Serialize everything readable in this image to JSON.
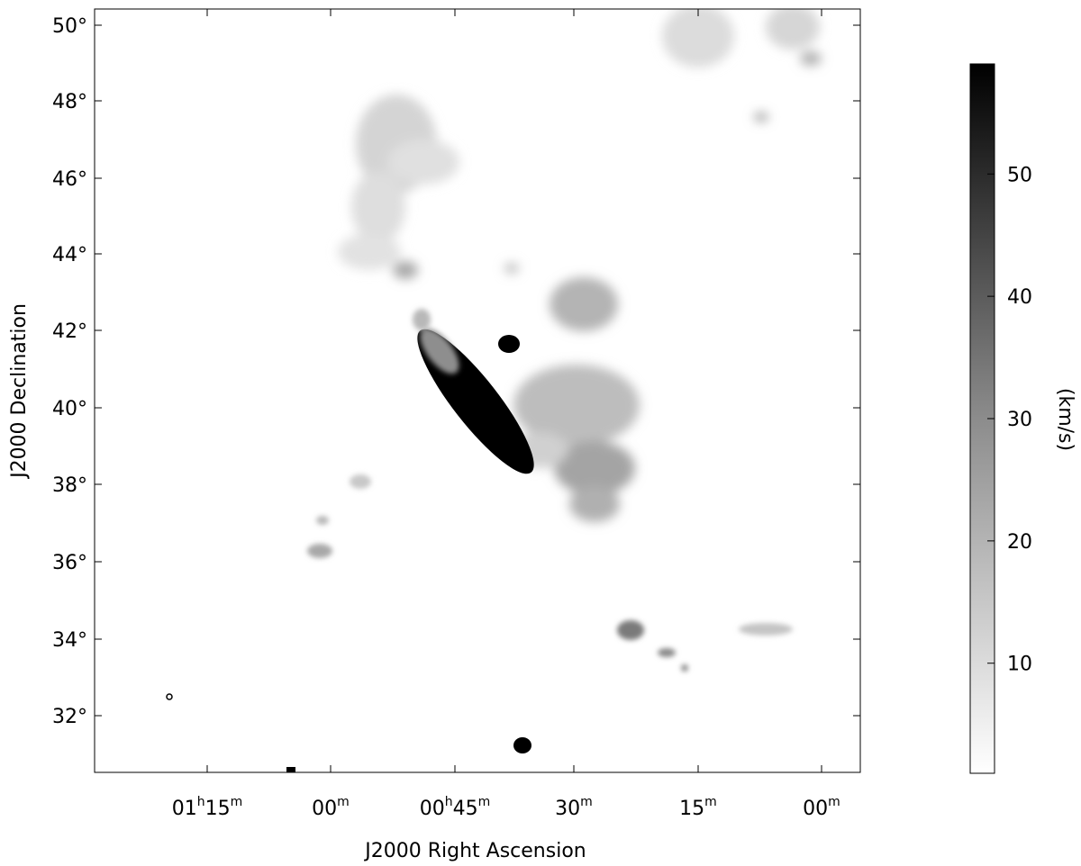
{
  "figure": {
    "x_axis": {
      "label": "J2000 Right Ascension",
      "ticks": [
        {
          "hh": "01",
          "mm": "15"
        },
        {
          "hh": "",
          "mm": "00"
        },
        {
          "hh": "00",
          "mm": "45"
        },
        {
          "hh": "",
          "mm": "30"
        },
        {
          "hh": "",
          "mm": "15"
        },
        {
          "hh": "",
          "mm": "00"
        }
      ]
    },
    "y_axis": {
      "label": "J2000 Declination",
      "ticks": [
        "50°",
        "48°",
        "46°",
        "44°",
        "42°",
        "40°",
        "38°",
        "36°",
        "34°",
        "32°"
      ]
    },
    "colorbar": {
      "label": "(km/s)",
      "ticks": [
        "50",
        "40",
        "30",
        "20",
        "10"
      ],
      "min": 1,
      "max": 59,
      "low_color": "#ffffff",
      "high_color": "#000000"
    },
    "map_colors": {
      "faint": "#e6e6e6",
      "light": "#c8c8c8",
      "medium": "#9a9a9a",
      "dark": "#000000"
    }
  }
}
